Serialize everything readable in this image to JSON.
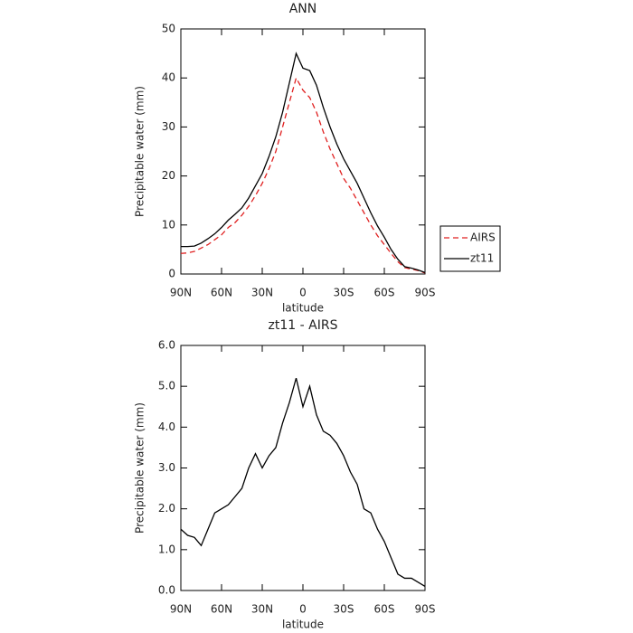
{
  "chart_data": [
    {
      "type": "line",
      "title": "ANN",
      "x_label": "latitude",
      "y_label": "Precipitable water (mm)",
      "x": [
        90,
        85,
        80,
        75,
        70,
        65,
        60,
        55,
        50,
        45,
        40,
        35,
        30,
        25,
        20,
        15,
        10,
        5,
        0,
        -5,
        -10,
        -15,
        -20,
        -25,
        -30,
        -35,
        -40,
        -45,
        -50,
        -55,
        -60,
        -65,
        -70,
        -75,
        -80,
        -85,
        -90
      ],
      "series": [
        {
          "name": "AIRS",
          "color": "#e02020",
          "dashed": true,
          "values": [
            4.2,
            4.3,
            4.6,
            5.3,
            6.0,
            7.0,
            8.0,
            9.5,
            10.5,
            12.0,
            13.8,
            16.0,
            18.5,
            21.5,
            25.0,
            30.0,
            35.0,
            40.0,
            37.5,
            36.0,
            33.0,
            29.0,
            25.5,
            22.5,
            19.5,
            17.5,
            15.0,
            12.5,
            10.0,
            7.8,
            6.0,
            4.2,
            2.5,
            1.3,
            1.0,
            0.7,
            0.2
          ]
        },
        {
          "name": "zt11",
          "color": "#000000",
          "dashed": false,
          "values": [
            5.6,
            5.6,
            5.7,
            6.3,
            7.2,
            8.2,
            9.5,
            11.0,
            12.2,
            13.5,
            15.5,
            18.0,
            20.5,
            24.0,
            28.0,
            33.0,
            39.0,
            45.0,
            42.0,
            41.5,
            38.5,
            34.0,
            30.0,
            26.5,
            23.5,
            21.0,
            18.5,
            15.5,
            12.5,
            9.8,
            7.5,
            5.0,
            3.0,
            1.5,
            1.2,
            0.8,
            0.3
          ]
        }
      ],
      "xlim": [
        90,
        -90
      ],
      "xticks": [
        {
          "value": 90,
          "label": "90N"
        },
        {
          "value": 60,
          "label": "60N"
        },
        {
          "value": 30,
          "label": "30N"
        },
        0,
        {
          "value": -30,
          "label": "30S"
        },
        {
          "value": -60,
          "label": "60S"
        },
        {
          "value": -90,
          "label": "90S"
        }
      ],
      "ylim": [
        0,
        50
      ],
      "yticks": [
        0,
        10,
        20,
        30,
        40,
        50
      ],
      "legend": "right"
    },
    {
      "type": "line",
      "title": "zt11 - AIRS",
      "x_label": "latitude",
      "y_label": "Precipitable water (mm)",
      "x": [
        90,
        85,
        80,
        75,
        70,
        65,
        60,
        55,
        50,
        45,
        40,
        35,
        30,
        25,
        20,
        15,
        10,
        5,
        0,
        -5,
        -10,
        -15,
        -20,
        -25,
        -30,
        -35,
        -40,
        -45,
        -50,
        -55,
        -60,
        -65,
        -70,
        -75,
        -80,
        -85,
        -90
      ],
      "series": [
        {
          "color": "#000000",
          "dashed": false,
          "values": [
            1.5,
            1.35,
            1.3,
            1.1,
            1.5,
            1.9,
            2.0,
            2.1,
            2.3,
            2.5,
            3.0,
            3.35,
            3.0,
            3.3,
            3.5,
            4.1,
            4.6,
            5.2,
            4.5,
            5.0,
            4.3,
            3.9,
            3.8,
            3.6,
            3.3,
            2.9,
            2.6,
            2.0,
            1.9,
            1.5,
            1.2,
            0.8,
            0.4,
            0.3,
            0.3,
            0.2,
            0.1
          ]
        }
      ],
      "xlim": [
        90,
        -90
      ],
      "xticks": [
        {
          "value": 90,
          "label": "90N"
        },
        {
          "value": 60,
          "label": "60N"
        },
        {
          "value": 30,
          "label": "30N"
        },
        0,
        {
          "value": -30,
          "label": "30S"
        },
        {
          "value": -60,
          "label": "60S"
        },
        {
          "value": -90,
          "label": "90S"
        }
      ],
      "ylim": [
        0,
        6
      ],
      "yticks": [
        {
          "value": 0,
          "label": "0.0"
        },
        {
          "value": 1,
          "label": "1.0"
        },
        {
          "value": 2,
          "label": "2.0"
        },
        {
          "value": 3,
          "label": "3.0"
        },
        {
          "value": 4,
          "label": "4.0"
        },
        {
          "value": 5,
          "label": "5.0"
        },
        {
          "value": 6,
          "label": "6.0"
        }
      ]
    }
  ]
}
